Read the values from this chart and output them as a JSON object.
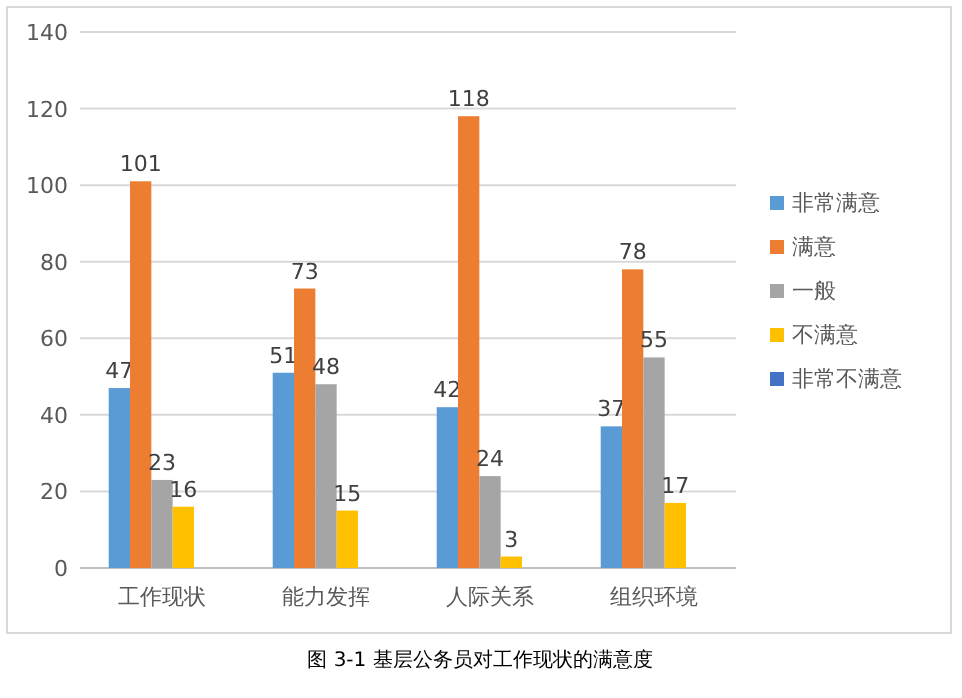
{
  "chart_data": {
    "type": "bar",
    "annotations": [
      "图 3-1  基层公务员对工作现状的满意度"
    ],
    "categories": [
      "工作现状",
      "能力发挥",
      "人际关系",
      "组织环境"
    ],
    "series": [
      {
        "name": "非常满意",
        "color": "#5b9bd5",
        "values": [
          47,
          51,
          42,
          37
        ]
      },
      {
        "name": "满意",
        "color": "#ed7d31",
        "values": [
          101,
          73,
          118,
          78
        ]
      },
      {
        "name": "一般",
        "color": "#a5a5a5",
        "values": [
          23,
          48,
          24,
          55
        ]
      },
      {
        "name": "不满意",
        "color": "#ffc000",
        "values": [
          16,
          15,
          3,
          17
        ]
      },
      {
        "name": "非常不满意",
        "color": "#4472c4",
        "values": [
          null,
          null,
          null,
          null
        ]
      }
    ],
    "ylim": [
      0,
      140
    ],
    "yticks": [
      0,
      20,
      40,
      60,
      80,
      100,
      120,
      140
    ],
    "grid": "y",
    "legend": "right",
    "data_labels": true
  }
}
